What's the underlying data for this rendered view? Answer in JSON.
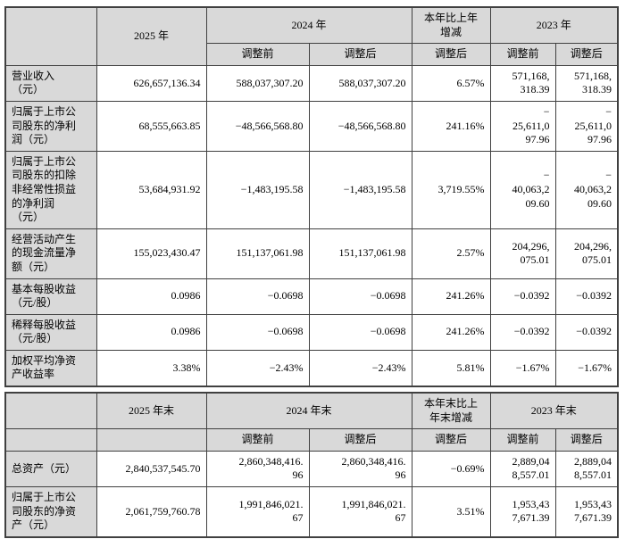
{
  "colors": {
    "header_bg": "#d9d9d9",
    "cell_bg": "#ffffff",
    "border": "#404040",
    "text": "#000000"
  },
  "tables": [
    {
      "name": "annual-summary-table",
      "header_row1": [
        {
          "text": "",
          "rowspan": 2
        },
        {
          "text": "2025 年",
          "rowspan": 2
        },
        {
          "text": "2024 年",
          "colspan": 2
        },
        {
          "text": "本年比上年\n增减"
        },
        {
          "text": "2023 年",
          "colspan": 2
        }
      ],
      "header_row2": [
        "调整前",
        "调整后",
        "调整后",
        "调整前",
        "调整后"
      ],
      "rows": [
        {
          "label": "营业收入\n（元）",
          "values": [
            "626,657,136.34",
            "588,037,307.20",
            "588,037,307.20",
            "6.57%",
            "571,168,\n318.39",
            "571,168,\n318.39"
          ]
        },
        {
          "label": "归属于上市公\n司股东的净利\n润（元）",
          "values": [
            "68,555,663.85",
            "−48,566,568.80",
            "−48,566,568.80",
            "241.16%",
            "−\n25,611,0\n97.96",
            "−\n25,611,0\n97.96"
          ]
        },
        {
          "label": "归属于上市公\n司股东的扣除\n非经常性损益\n的净利润\n（元）",
          "values": [
            "53,684,931.92",
            "−1,483,195.58",
            "−1,483,195.58",
            "3,719.55%",
            "−\n40,063,2\n09.60",
            "−\n40,063,2\n09.60"
          ]
        },
        {
          "label": "经营活动产生\n的现金流量净\n额（元）",
          "values": [
            "155,023,430.47",
            "151,137,061.98",
            "151,137,061.98",
            "2.57%",
            "204,296,\n075.01",
            "204,296,\n075.01"
          ]
        },
        {
          "label": "基本每股收益\n（元/股）",
          "values": [
            "0.0986",
            "−0.0698",
            "−0.0698",
            "241.26%",
            "−0.0392",
            "−0.0392"
          ]
        },
        {
          "label": "稀释每股收益\n（元/股）",
          "values": [
            "0.0986",
            "−0.0698",
            "−0.0698",
            "241.26%",
            "−0.0392",
            "−0.0392"
          ]
        },
        {
          "label": "加权平均净资\n产收益率",
          "values": [
            "3.38%",
            "−2.43%",
            "−2.43%",
            "5.81%",
            "−1.67%",
            "−1.67%"
          ]
        }
      ]
    },
    {
      "name": "year-end-summary-table",
      "header_row1": [
        {
          "text": ""
        },
        {
          "text": "2025 年末"
        },
        {
          "text": "2024 年末",
          "colspan": 2
        },
        {
          "text": "本年末比上\n年末增减"
        },
        {
          "text": "2023 年末",
          "colspan": 2
        }
      ],
      "header_row2": [
        "",
        "",
        "调整前",
        "调整后",
        "调整后",
        "调整前",
        "调整后"
      ],
      "rows": [
        {
          "label": "总资产（元）",
          "values": [
            "2,840,537,545.70",
            "2,860,348,416.\n96",
            "2,860,348,416.\n96",
            "−0.69%",
            "2,889,04\n8,557.01",
            "2,889,04\n8,557.01"
          ]
        },
        {
          "label": "归属于上市公\n司股东的净资\n产（元）",
          "values": [
            "2,061,759,760.78",
            "1,991,846,021.\n67",
            "1,991,846,021.\n67",
            "3.51%",
            "1,953,43\n7,671.39",
            "1,953,43\n7,671.39"
          ]
        }
      ]
    }
  ]
}
